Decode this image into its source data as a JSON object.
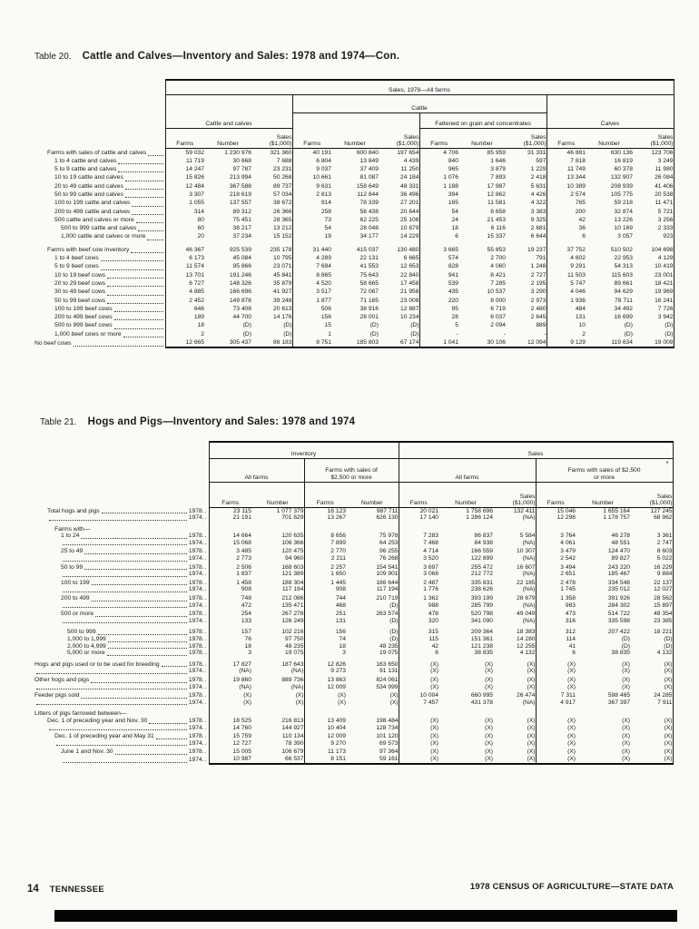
{
  "t20": {
    "prefix": "Table 20.",
    "title": "Cattle and Calves—Inventory and Sales:  1978 and 1974—Con.",
    "spanner": "Sales, 1978—All farms",
    "g_cattle_calves": "Cattle and calves",
    "g_cattle": "Cattle",
    "g_fattened": "Fattened on grain and concentrates",
    "g_calves": "Calves",
    "h_farms": "Farms",
    "h_number": "Number",
    "h_sales": "Sales|($1,000)",
    "rows": [
      {
        "l": "Farms with sales of cattle and calves",
        "i": 1,
        "v": [
          "59 032",
          "1 230 976",
          "321 360",
          "40 191",
          "600 840",
          "197 654",
          "4 706",
          "85 959",
          "31 331",
          "46 881",
          "630 136",
          "123 706"
        ]
      },
      {
        "l": "1 to 4 cattle and calves",
        "i": 2,
        "v": [
          "11 719",
          "30 668",
          "7 688",
          "6 804",
          "13 849",
          "4 439",
          "840",
          "1 646",
          "597",
          "7 818",
          "16 819",
          "3 249"
        ]
      },
      {
        "l": "5 to 9 cattle and calves",
        "i": 2,
        "v": [
          "14 247",
          "97 787",
          "23 231",
          "9 037",
          "37 409",
          "11 250",
          "965",
          "3 879",
          "1 229",
          "11 749",
          "60 378",
          "11 980"
        ]
      },
      {
        "l": "10 to 19 cattle and calves",
        "i": 2,
        "v": [
          "15 826",
          "213 994",
          "50 268",
          "10 661",
          "81 087",
          "24 184",
          "1 076",
          "7 893",
          "2 418",
          "13 344",
          "132 907",
          "26 084"
        ]
      },
      {
        "l": "20 to 49 cattle and calves",
        "i": 2,
        "v": [
          "12 484",
          "367 588",
          "89 737",
          "9 631",
          "158 649",
          "48 331",
          "1 188",
          "17 987",
          "5 631",
          "10 389",
          "208 939",
          "41 406"
        ]
      },
      {
        "l": "50 to 99 cattle and calves",
        "i": 2,
        "v": [
          "3 307",
          "218 619",
          "57 034",
          "2 813",
          "112 844",
          "36 496",
          "394",
          "12 862",
          "4 426",
          "2 574",
          "105 775",
          "20 538"
        ]
      },
      {
        "l": "100 to 199 cattle and calves",
        "i": 2,
        "v": [
          "1 055",
          "137 557",
          "38 672",
          "914",
          "78 339",
          "27 201",
          "165",
          "11 581",
          "4 322",
          "765",
          "59 218",
          "11 471"
        ]
      },
      {
        "l": "200 to 499 cattle and calves",
        "i": 2,
        "v": [
          "314",
          "89 312",
          "26 366",
          "258",
          "56 438",
          "20 644",
          "54",
          "8 658",
          "3 383",
          "200",
          "32 874",
          "5 721"
        ]
      },
      {
        "l": "500 cattle and calves or more",
        "i": 2,
        "v": [
          "80",
          "75 451",
          "28 365",
          "73",
          "62 225",
          "25 108",
          "24",
          "21 453",
          "9 325",
          "42",
          "13 226",
          "3 256"
        ]
      },
      {
        "l": "500 to 999 cattle and calves",
        "i": 3,
        "v": [
          "60",
          "38 217",
          "13 212",
          "54",
          "28 048",
          "10 879",
          "18",
          "6 116",
          "2 681",
          "36",
          "10 169",
          "2 333"
        ]
      },
      {
        "l": "1,000 cattle and calves or more",
        "i": 3,
        "v": [
          "20",
          "37 234",
          "15 152",
          "19",
          "34 177",
          "14 229",
          "6",
          "15 337",
          "6 644",
          "6",
          "3 057",
          "923"
        ]
      },
      {
        "l": "Farms with beef cow inventory",
        "i": 1,
        "g": 2,
        "v": [
          "46 367",
          "925 539",
          "235 178",
          "31 440",
          "415 037",
          "130 480",
          "3 665",
          "55 853",
          "19 237",
          "37 752",
          "510 502",
          "104 698"
        ]
      },
      {
        "l": "1 to 4 beef cows",
        "i": 2,
        "v": [
          "6 173",
          "45 084",
          "10 795",
          "4 289",
          "22 131",
          "6 665",
          "574",
          "2 700",
          "791",
          "4 602",
          "22 953",
          "4 129"
        ]
      },
      {
        "l": "5 to 9 beef cows",
        "i": 2,
        "v": [
          "11 574",
          "95 866",
          "23 071",
          "7 694",
          "41 553",
          "12 653",
          "828",
          "4 060",
          "1 248",
          "9 291",
          "54 313",
          "10 419"
        ]
      },
      {
        "l": "10 to 19 beef cows",
        "i": 2,
        "v": [
          "13 701",
          "191 246",
          "45 841",
          "8 865",
          "75 643",
          "22 840",
          "941",
          "8 421",
          "2 727",
          "11 503",
          "115 603",
          "23 001"
        ]
      },
      {
        "l": "20 to 29 beef cows",
        "i": 2,
        "v": [
          "6 727",
          "148 326",
          "35 879",
          "4 520",
          "58 665",
          "17 458",
          "539",
          "7 285",
          "2 195",
          "5 747",
          "89 661",
          "18 421"
        ]
      },
      {
        "l": "30 to 49 beef cows",
        "i": 2,
        "v": [
          "4 885",
          "166 696",
          "41 927",
          "3 517",
          "72 067",
          "21 958",
          "435",
          "10 537",
          "3 290",
          "4 046",
          "94 629",
          "19 969"
        ]
      },
      {
        "l": "50 to 99 beef cows",
        "i": 2,
        "v": [
          "2 452",
          "149 876",
          "39 248",
          "1 877",
          "71 165",
          "23 008",
          "220",
          "8 000",
          "2 973",
          "1 936",
          "78 711",
          "16 241"
        ]
      },
      {
        "l": "100 to 199 beef cows",
        "i": 2,
        "v": [
          "646",
          "73 408",
          "20 613",
          "506",
          "38 916",
          "12 887",
          "95",
          "6 719",
          "2 480",
          "484",
          "34 492",
          "7 726"
        ]
      },
      {
        "l": "200 to 499 beef cows",
        "i": 2,
        "v": [
          "189",
          "44 700",
          "14 176",
          "156",
          "28 001",
          "10 234",
          "28",
          "6 037",
          "2 645",
          "131",
          "16 699",
          "3 942"
        ]
      },
      {
        "l": "500 to 999 beef cows",
        "i": 2,
        "v": [
          "18",
          "(D)",
          "(D)",
          "15",
          "(D)",
          "(D)",
          "5",
          "2 094",
          "889",
          "10",
          "(D)",
          "(D)"
        ]
      },
      {
        "l": "1,000 beef cows or more",
        "i": 2,
        "v": [
          "2",
          "(D)",
          "(D)",
          "1",
          "(D)",
          "(D)",
          "-",
          "-",
          "-",
          "2",
          "(D)",
          "(D)"
        ]
      },
      {
        "l": "No beef cows",
        "i": 0,
        "v": [
          "12 665",
          "305 437",
          "86 183",
          "8 751",
          "185 803",
          "67 174",
          "1 041",
          "30 106",
          "12 094",
          "9 129",
          "119 634",
          "19 009"
        ]
      }
    ]
  },
  "t21": {
    "prefix": "Table 21.",
    "title": "Hogs and Pigs—Inventory and Sales:  1978 and 1974",
    "g_inventory": "Inventory",
    "g_sales": "Sales",
    "g_all_farms": "All farms",
    "g_2500_inv": "Farms with sales of|$2,500 or more",
    "g_2500_sales": "Farms with sales of $2,500|or more",
    "asterisk": "*",
    "h_farms": "Farms",
    "h_number": "Number",
    "h_sales": "Sales|($1,000)",
    "rows": [
      {
        "l": "Total hogs and pigs",
        "y": "1978",
        "i": 1,
        "v": [
          "23 115",
          "1 077 379",
          "16 123",
          "987 711",
          "20 021",
          "1 758 696",
          "132 411",
          "15 046",
          "1 655 164",
          "127 245"
        ]
      },
      {
        "l": "",
        "y": "1974",
        "i": 1,
        "v": [
          "21 191",
          "701 629",
          "13 267",
          "626 130",
          "17 140",
          "1 286 124",
          "(NA)",
          "12 298",
          "1 178 757",
          "68 962"
        ]
      },
      {
        "l": "Farms with—",
        "i": 2,
        "g": 2,
        "hdr": true
      },
      {
        "l": "1 to 24",
        "y": "1978",
        "i": 3,
        "v": [
          "14 664",
          "120 635",
          "8 656",
          "75 978",
          "7 283",
          "86 837",
          "5 584",
          "3 764",
          "46 278",
          "3 361"
        ]
      },
      {
        "l": "",
        "y": "1974",
        "i": 3,
        "v": [
          "15 068",
          "106 366",
          "7 899",
          "64 253",
          "7 468",
          "84 938",
          "(NA)",
          "4 061",
          "48 551",
          "2 747"
        ]
      },
      {
        "l": "25 to 49",
        "y": "1978",
        "i": 3,
        "g": 1,
        "v": [
          "3 485",
          "120 475",
          "2 770",
          "96 255",
          "4 714",
          "166 559",
          "10 307",
          "3 479",
          "124 470",
          "8 603"
        ]
      },
      {
        "l": "",
        "y": "1974",
        "i": 3,
        "v": [
          "2 773",
          "94 960",
          "2 211",
          "76 268",
          "3 520",
          "122 899",
          "(NA)",
          "2 542",
          "89 827",
          "5 022"
        ]
      },
      {
        "l": "50 to 99",
        "y": "1978",
        "i": 3,
        "g": 1,
        "v": [
          "2 506",
          "168 603",
          "2 257",
          "154 541",
          "3 697",
          "255 472",
          "16 607",
          "3 494",
          "243 220",
          "16 229"
        ]
      },
      {
        "l": "",
        "y": "1974",
        "i": 3,
        "v": [
          "1 837",
          "121 389",
          "1 650",
          "109 901",
          "3 068",
          "212 772",
          "(NA)",
          "2 651",
          "185 467",
          "9 884"
        ]
      },
      {
        "l": "100 to 199",
        "y": "1978",
        "i": 3,
        "g": 1,
        "v": [
          "1 458",
          "188 304",
          "1 445",
          "186 644",
          "2 487",
          "335 831",
          "22 185",
          "2 478",
          "334 548",
          "22 137"
        ]
      },
      {
        "l": "",
        "y": "1974",
        "i": 3,
        "v": [
          "908",
          "117 194",
          "908",
          "117 194",
          "1 776",
          "238 626",
          "(NA)",
          "1 745",
          "235 012",
          "12 027"
        ]
      },
      {
        "l": "200 to 499",
        "y": "1978",
        "i": 3,
        "g": 1,
        "v": [
          "748",
          "212 086",
          "744",
          "210 719",
          "1 362",
          "393 199",
          "28 679",
          "1 358",
          "391 926",
          "28 562"
        ]
      },
      {
        "l": "",
        "y": "1974",
        "i": 3,
        "v": [
          "472",
          "135 471",
          "468",
          "(D)",
          "988",
          "285 799",
          "(NA)",
          "983",
          "284 302",
          "15 897"
        ]
      },
      {
        "l": "500 or more",
        "y": "1978",
        "i": 3,
        "g": 1,
        "v": [
          "254",
          "267 276",
          "251",
          "263 574",
          "478",
          "520 798",
          "49 049",
          "473",
          "514 722",
          "48 354"
        ]
      },
      {
        "l": "",
        "y": "1974",
        "i": 3,
        "v": [
          "133",
          "126 249",
          "131",
          "(D)",
          "320",
          "341 090",
          "(NA)",
          "316",
          "335 598",
          "23 385"
        ]
      },
      {
        "l": "500 to 999",
        "y": "1978",
        "i": 4,
        "g": 2,
        "v": [
          "157",
          "102 216",
          "156",
          "(D)",
          "315",
          "209 364",
          "18 383",
          "312",
          "207 422",
          "18 221"
        ]
      },
      {
        "l": "1,000 to 1,999",
        "y": "1978",
        "i": 4,
        "v": [
          "76",
          "97 750",
          "74",
          "(D)",
          "115",
          "151 361",
          "14 280",
          "114",
          "(D)",
          "(D)"
        ]
      },
      {
        "l": "2,000 to 4,999",
        "y": "1978",
        "i": 4,
        "v": [
          "18",
          "48 235",
          "18",
          "48 235",
          "42",
          "121 238",
          "12 255",
          "41",
          "(D)",
          "(D)"
        ]
      },
      {
        "l": "5,000 or more",
        "y": "1978",
        "i": 4,
        "v": [
          "3",
          "19 075",
          "3",
          "19 075",
          "6",
          "38 835",
          "4 132",
          "6",
          "38 835",
          "4 132"
        ]
      },
      {
        "l": "Hogs and pigs used or to be used for breeding",
        "y": "1978",
        "i": 0,
        "g": 2,
        "v": [
          "17 827",
          "187 643",
          "12 826",
          "163 650",
          "(X)",
          "(X)",
          "(X)",
          "(X)",
          "(X)",
          "(X)"
        ]
      },
      {
        "l": "",
        "y": "1974",
        "i": 0,
        "v": [
          "(NA)",
          "(NA)",
          "9 273",
          "91 131",
          "(X)",
          "(X)",
          "(X)",
          "(X)",
          "(X)",
          "(X)"
        ]
      },
      {
        "l": "Other hogs and pigs",
        "y": "1978",
        "i": 0,
        "g": 1,
        "v": [
          "19 860",
          "889 736",
          "13 863",
          "824 061",
          "(X)",
          "(X)",
          "(X)",
          "(X)",
          "(X)",
          "(X)"
        ]
      },
      {
        "l": "",
        "y": "1974",
        "i": 0,
        "v": [
          "(NA)",
          "(NA)",
          "12 009",
          "534 999",
          "(X)",
          "(X)",
          "(X)",
          "(X)",
          "(X)",
          "(X)"
        ]
      },
      {
        "l": "Feeder pigs sold",
        "y": "1978",
        "i": 0,
        "g": 1,
        "v": [
          "(X)",
          "(X)",
          "(X)",
          "(X)",
          "10 004",
          "660 995",
          "26 474",
          "7 311",
          "598 465",
          "24 285"
        ]
      },
      {
        "l": "",
        "y": "1974",
        "i": 0,
        "v": [
          "(X)",
          "(X)",
          "(X)",
          "(X)",
          "7 457",
          "431 378",
          "(NA)",
          "4 917",
          "367 397",
          "7 911"
        ]
      },
      {
        "l": "Litters of pigs farrowed between—",
        "i": 0,
        "g": 2,
        "hdr": true
      },
      {
        "l": "Dec. 1 of preceding year and Nov. 30",
        "y": "1978",
        "i": 1,
        "v": [
          "18 525",
          "216 813",
          "13 409",
          "198 484",
          "(X)",
          "(X)",
          "(X)",
          "(X)",
          "(X)",
          "(X)"
        ]
      },
      {
        "l": "",
        "y": "1974",
        "i": 1,
        "v": [
          "14 760",
          "144 927",
          "10 404",
          "128 734",
          "(X)",
          "(X)",
          "(X)",
          "(X)",
          "(X)",
          "(X)"
        ]
      },
      {
        "l": "Dec. 1 of preceding year and May 31",
        "y": "1978",
        "i": 2,
        "g": 1,
        "v": [
          "15 759",
          "110 134",
          "12 009",
          "101 120",
          "(X)",
          "(X)",
          "(X)",
          "(X)",
          "(X)",
          "(X)"
        ]
      },
      {
        "l": "",
        "y": "1974",
        "i": 2,
        "v": [
          "12 727",
          "78 390",
          "9 270",
          "69 573",
          "(X)",
          "(X)",
          "(X)",
          "(X)",
          "(X)",
          "(X)"
        ]
      },
      {
        "l": "June 1 and Nov. 30",
        "y": "1978",
        "i": 3,
        "g": 1,
        "v": [
          "15 005",
          "106 679",
          "11 173",
          "97 364",
          "(X)",
          "(X)",
          "(X)",
          "(X)",
          "(X)",
          "(X)"
        ]
      },
      {
        "l": "",
        "y": "1974",
        "i": 3,
        "v": [
          "10 987",
          "66 537",
          "8 151",
          "59 161",
          "(X)",
          "(X)",
          "(X)",
          "(X)",
          "(X)",
          "(X)"
        ]
      }
    ]
  },
  "footer": {
    "page_number": "14",
    "state": "TENNESSEE",
    "right": "1978 CENSUS OF AGRICULTURE—STATE DATA"
  }
}
